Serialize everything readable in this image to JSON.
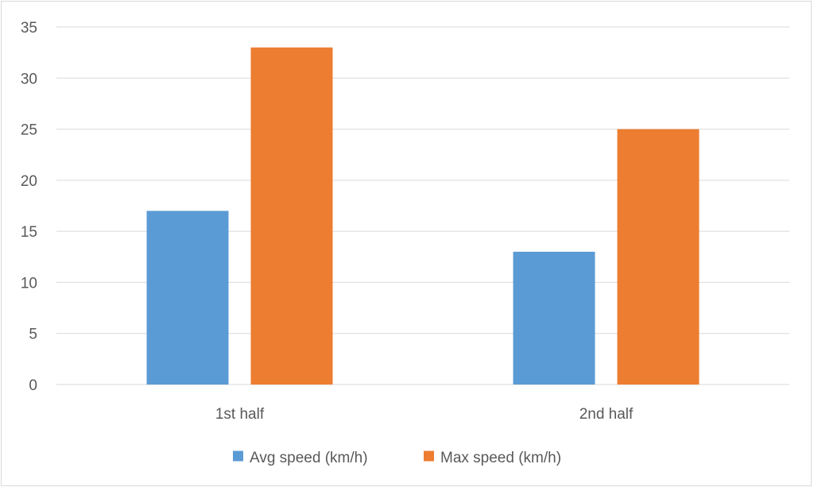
{
  "chart_data": {
    "type": "bar",
    "categories": [
      "1st half",
      "2nd half"
    ],
    "series": [
      {
        "name": "Avg speed (km/h)",
        "values": [
          17,
          13
        ],
        "color": "#5b9bd5"
      },
      {
        "name": "Max speed (km/h)",
        "values": [
          33,
          25
        ],
        "color": "#ed7d31"
      }
    ],
    "ylim": [
      0,
      35
    ],
    "yticks": [
      0,
      5,
      10,
      15,
      20,
      25,
      30,
      35
    ],
    "grid": true,
    "gridColor": "#d9d9d9",
    "legendPlacement": "bottom",
    "title": "",
    "xlabel": "",
    "ylabel": ""
  }
}
